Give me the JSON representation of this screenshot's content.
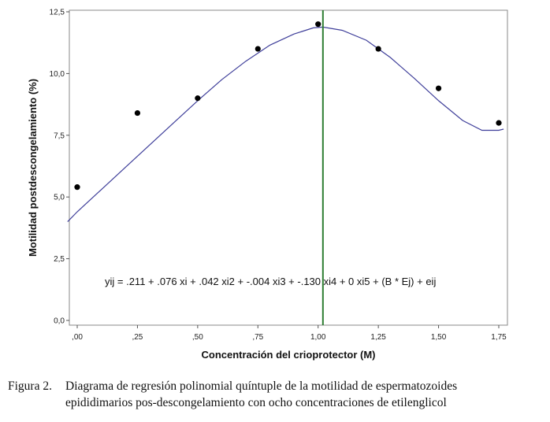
{
  "chart_data": {
    "type": "scatter",
    "xlabel": "Concentración del crioprotector (M)",
    "ylabel": "Motilidad postdescongelamiento (%)",
    "xlim": [
      0,
      1.75
    ],
    "ylim": [
      0,
      12.5
    ],
    "xticks": [
      ",00",
      ",25",
      ",50",
      ",75",
      "1,00",
      "1,25",
      "1,50",
      "1,75"
    ],
    "yticks": [
      "0,0",
      "2,5",
      "5,0",
      "7,5",
      "10,0",
      "12,5"
    ],
    "points": [
      {
        "x": 0.0,
        "y": 5.4
      },
      {
        "x": 0.25,
        "y": 8.4
      },
      {
        "x": 0.5,
        "y": 9.0
      },
      {
        "x": 0.75,
        "y": 11.0
      },
      {
        "x": 1.0,
        "y": 12.0
      },
      {
        "x": 1.25,
        "y": 11.0
      },
      {
        "x": 1.5,
        "y": 9.4
      },
      {
        "x": 1.75,
        "y": 8.0
      }
    ],
    "fit_curve": {
      "color": "#3f3f9a",
      "points": [
        {
          "x": -0.04,
          "y": 4.0
        },
        {
          "x": 0.0,
          "y": 4.4
        },
        {
          "x": 0.1,
          "y": 5.3
        },
        {
          "x": 0.2,
          "y": 6.2
        },
        {
          "x": 0.3,
          "y": 7.1
        },
        {
          "x": 0.4,
          "y": 8.0
        },
        {
          "x": 0.5,
          "y": 8.9
        },
        {
          "x": 0.6,
          "y": 9.75
        },
        {
          "x": 0.7,
          "y": 10.5
        },
        {
          "x": 0.8,
          "y": 11.15
        },
        {
          "x": 0.9,
          "y": 11.6
        },
        {
          "x": 0.98,
          "y": 11.85
        },
        {
          "x": 1.02,
          "y": 11.88
        },
        {
          "x": 1.1,
          "y": 11.75
        },
        {
          "x": 1.2,
          "y": 11.35
        },
        {
          "x": 1.3,
          "y": 10.65
        },
        {
          "x": 1.4,
          "y": 9.8
        },
        {
          "x": 1.5,
          "y": 8.9
        },
        {
          "x": 1.6,
          "y": 8.1
        },
        {
          "x": 1.68,
          "y": 7.7
        },
        {
          "x": 1.75,
          "y": 7.7
        },
        {
          "x": 1.77,
          "y": 7.75
        }
      ]
    },
    "reference_line": {
      "x": 1.02,
      "color": "#2e7d32"
    },
    "equation": "yij = .211 + .076 xi + .042 xi2 + -.004 xi3 + -.130 xi4 + 0 xi5 + (B * Ej) + eij"
  },
  "caption": {
    "label": "Figura 2.",
    "line1": "Diagrama de regresión polinomial quíntuple de la motilidad de espermatozoides",
    "line2": "epididimarios pos-descongelamiento con ocho concentraciones de etilenglicol"
  }
}
